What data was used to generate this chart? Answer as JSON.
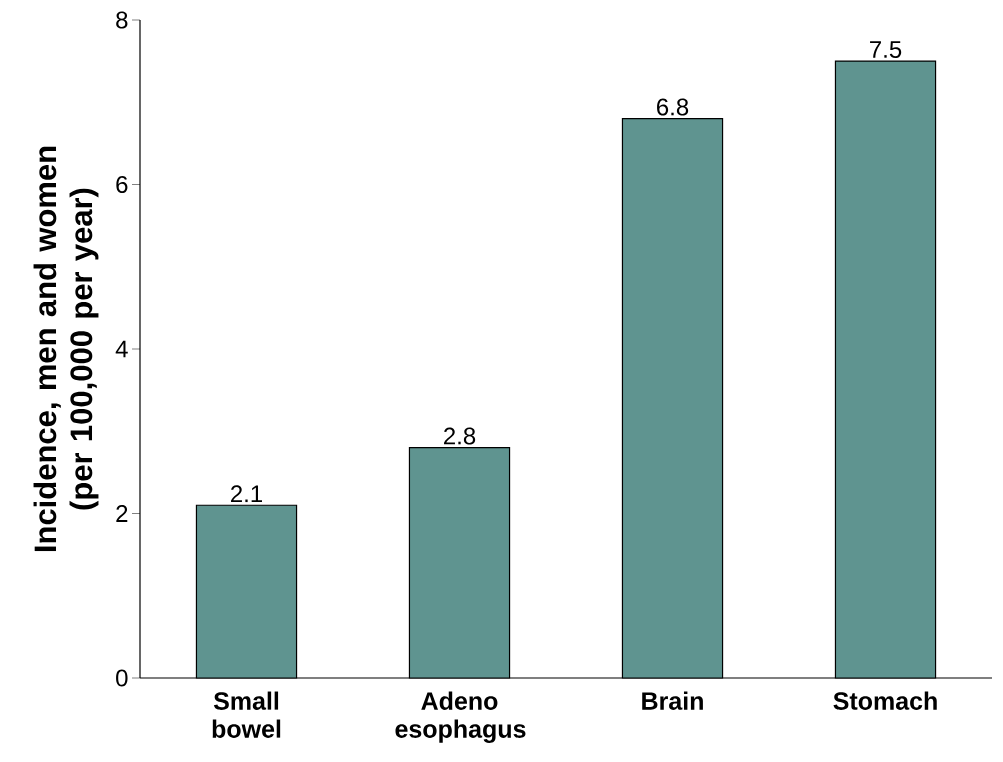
{
  "chart_data": {
    "type": "bar",
    "ylabel": "Incidence, men and women (per 100,000 per year)",
    "categories": [
      "Small bowel",
      "Adeno esophagus",
      "Brain",
      "Stomach"
    ],
    "values": [
      2.1,
      2.8,
      6.8,
      7.5
    ],
    "color": "#5f9490",
    "ylim": [
      0,
      8
    ],
    "yticks": [
      0,
      2,
      4,
      6,
      8
    ],
    "data_labels": true,
    "grid": false
  }
}
